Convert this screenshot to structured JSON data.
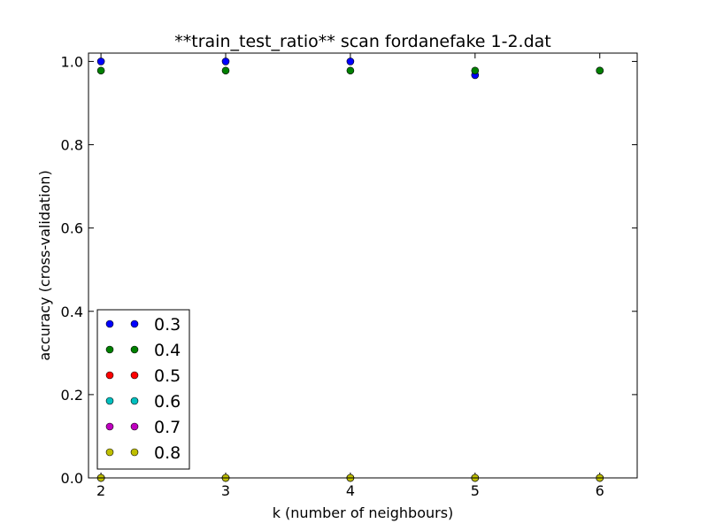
{
  "chart_data": {
    "type": "scatter",
    "title": "**train_test_ratio** scan fordanefake 1-2.dat",
    "xlabel": "k (number of neighbours)",
    "ylabel": "accuracy (cross-validation)",
    "xlim": [
      1.9,
      6.3
    ],
    "ylim": [
      0.0,
      1.02
    ],
    "xticks": [
      2,
      3,
      4,
      5,
      6
    ],
    "yticks": [
      0.0,
      0.2,
      0.4,
      0.6,
      0.8,
      1.0
    ],
    "xtick_labels": [
      "2",
      "3",
      "4",
      "5",
      "6"
    ],
    "ytick_labels": [
      "0.0",
      "0.2",
      "0.4",
      "0.6",
      "0.8",
      "1.0"
    ],
    "grid": false,
    "legend_position": "lower-left",
    "x": [
      2,
      3,
      4,
      5,
      6
    ],
    "series": [
      {
        "name": "0.3",
        "color": "#0000ff",
        "values": [
          1.0,
          1.0,
          1.0,
          0.967,
          0.978
        ]
      },
      {
        "name": "0.4",
        "color": "#008000",
        "values": [
          0.978,
          0.978,
          0.978,
          0.978,
          0.978
        ]
      },
      {
        "name": "0.5",
        "color": "#ff0000",
        "values": [
          0.0,
          0.0,
          0.0,
          0.0,
          0.0
        ]
      },
      {
        "name": "0.6",
        "color": "#00bfbf",
        "values": [
          0.0,
          0.0,
          0.0,
          0.0,
          0.0
        ]
      },
      {
        "name": "0.7",
        "color": "#bf00bf",
        "values": [
          0.0,
          0.0,
          0.0,
          0.0,
          0.0
        ]
      },
      {
        "name": "0.8",
        "color": "#bfbf00",
        "values": [
          0.0,
          0.0,
          0.0,
          0.0,
          0.0
        ]
      }
    ]
  }
}
